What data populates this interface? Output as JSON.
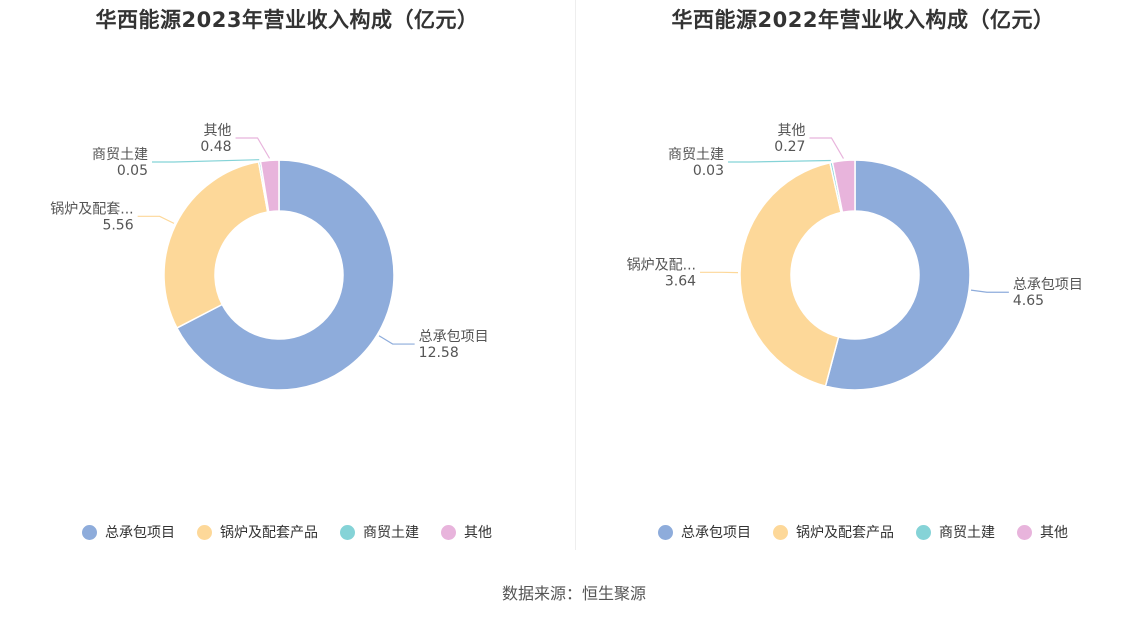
{
  "source": "数据来源：恒生聚源",
  "colors": [
    "#8eacdb",
    "#fdd899",
    "#85d3d7",
    "#e8b4dc"
  ],
  "chart_data": [
    {
      "type": "pie",
      "title": "华西能源2023年营业收入构成（亿元）",
      "categories": [
        "总承包项目",
        "锅炉及配套产品",
        "商贸土建",
        "其他"
      ],
      "display_labels": [
        "总承包项目",
        "锅炉及配套...",
        "商贸土建",
        "其他"
      ],
      "values": [
        12.58,
        5.56,
        0.05,
        0.48
      ],
      "value_labels": [
        "12.58",
        "5.56",
        "0.05",
        "0.48"
      ],
      "legend": "bottom"
    },
    {
      "type": "pie",
      "title": "华西能源2022年营业收入构成（亿元）",
      "categories": [
        "总承包项目",
        "锅炉及配套产品",
        "商贸土建",
        "其他"
      ],
      "display_labels": [
        "总承包项目",
        "锅炉及配...",
        "商贸土建",
        "其他"
      ],
      "values": [
        4.65,
        3.64,
        0.03,
        0.27
      ],
      "value_labels": [
        "4.65",
        "3.64",
        "0.03",
        "0.27"
      ],
      "legend": "bottom"
    }
  ]
}
